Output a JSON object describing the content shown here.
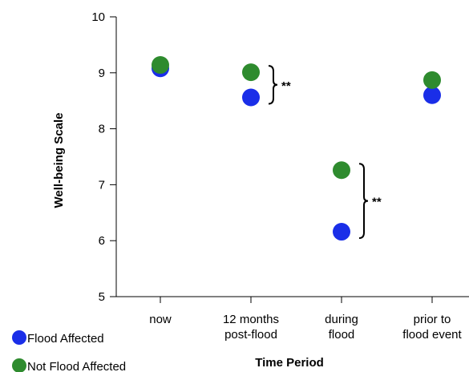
{
  "chart_data": {
    "type": "scatter",
    "xlabel": "Time Period",
    "ylabel": "Well-being Scale",
    "ylim": [
      5,
      10
    ],
    "yticks": [
      "5",
      "6",
      "7",
      "8",
      "9",
      "10"
    ],
    "categories": [
      [
        "now"
      ],
      [
        "12 months",
        "post-flood"
      ],
      [
        "during",
        "flood"
      ],
      [
        "prior to",
        "flood event"
      ]
    ],
    "series": [
      {
        "name": "Flood Affected",
        "color": "#1a2ee8",
        "values": [
          9.08,
          8.56,
          6.16,
          8.6
        ]
      },
      {
        "name": "Not Flood Affected",
        "color": "#2e8b2e",
        "values": [
          9.14,
          9.01,
          7.26,
          8.87
        ]
      }
    ],
    "significance": [
      {
        "category_index": 1,
        "label": "**"
      },
      {
        "category_index": 2,
        "label": "**"
      }
    ],
    "legend_position": "bottom-left"
  }
}
